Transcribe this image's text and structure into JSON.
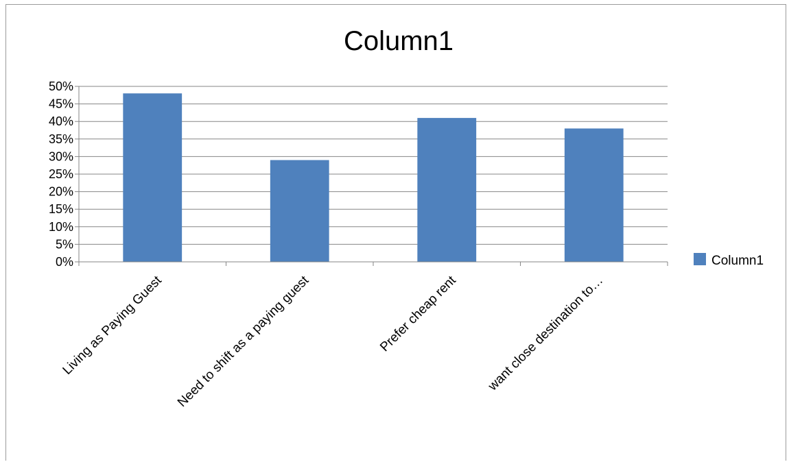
{
  "chart_data": {
    "type": "bar",
    "title": "Column1",
    "categories": [
      "Living as Paying Guest",
      "Need to shift as a paying guest",
      "Prefer cheap rent",
      "want close destination to…"
    ],
    "series": [
      {
        "name": "Column1",
        "values": [
          0.48,
          0.29,
          0.41,
          0.38
        ],
        "color": "#4f81bd"
      }
    ],
    "ylim": [
      0,
      0.5
    ],
    "yticks": [
      "0%",
      "5%",
      "10%",
      "15%",
      "20%",
      "25%",
      "30%",
      "35%",
      "40%",
      "45%",
      "50%"
    ],
    "xlabel": "",
    "ylabel": "",
    "grid": true,
    "legend": "right",
    "colors": {
      "gridline": "#868686",
      "axis": "#868686"
    }
  }
}
